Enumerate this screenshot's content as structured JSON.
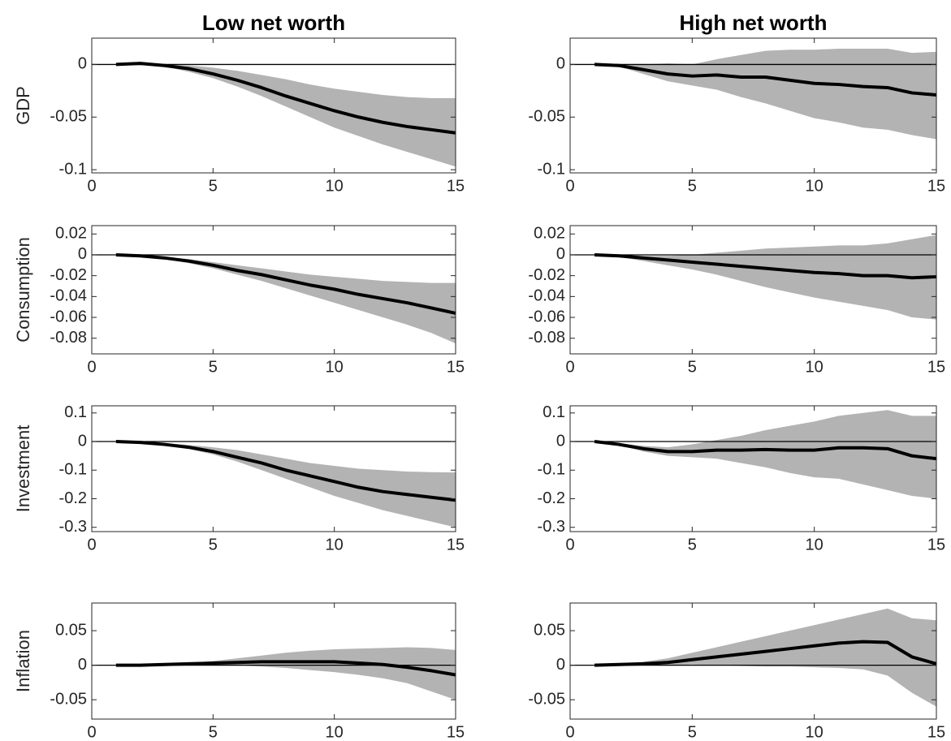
{
  "chart_data": [
    {
      "type": "line",
      "title": "Low net worth",
      "ylabel": "GDP",
      "x": [
        1,
        2,
        3,
        4,
        5,
        6,
        7,
        8,
        9,
        10,
        11,
        12,
        13,
        14,
        15
      ],
      "values": [
        0,
        0.001,
        -0.001,
        -0.004,
        -0.009,
        -0.015,
        -0.022,
        -0.03,
        -0.037,
        -0.044,
        -0.05,
        -0.055,
        -0.059,
        -0.062,
        -0.065
      ],
      "lower": [
        0,
        0.001,
        -0.002,
        -0.007,
        -0.013,
        -0.021,
        -0.03,
        -0.04,
        -0.05,
        -0.06,
        -0.068,
        -0.076,
        -0.083,
        -0.09,
        -0.097
      ],
      "upper": [
        0,
        0.001,
        0,
        -0.001,
        -0.003,
        -0.006,
        -0.01,
        -0.014,
        -0.019,
        -0.023,
        -0.026,
        -0.029,
        -0.031,
        -0.032,
        -0.032
      ],
      "color": "#000000",
      "band_color": "#b3b3b3",
      "reference_line": 0,
      "xlim": [
        0,
        15
      ],
      "xticks": [
        0,
        5,
        10,
        15
      ],
      "ylim": [
        -0.103,
        0.025
      ],
      "yticks": [
        -0.1,
        -0.05,
        0
      ]
    },
    {
      "type": "line",
      "title": "High net worth",
      "x": [
        1,
        2,
        3,
        4,
        5,
        6,
        7,
        8,
        9,
        10,
        11,
        12,
        13,
        14,
        15
      ],
      "values": [
        0,
        -0.001,
        -0.005,
        -0.009,
        -0.011,
        -0.01,
        -0.012,
        -0.012,
        -0.015,
        -0.018,
        -0.019,
        -0.021,
        -0.022,
        -0.027,
        -0.029
      ],
      "lower": [
        0,
        -0.002,
        -0.009,
        -0.016,
        -0.02,
        -0.024,
        -0.031,
        -0.037,
        -0.044,
        -0.051,
        -0.055,
        -0.06,
        -0.062,
        -0.067,
        -0.071
      ],
      "upper": [
        0,
        -0.001,
        0,
        0.001,
        0,
        0.005,
        0.009,
        0.013,
        0.014,
        0.014,
        0.015,
        0.015,
        0.015,
        0.011,
        0.012
      ],
      "color": "#000000",
      "band_color": "#b3b3b3",
      "reference_line": 0,
      "xlim": [
        0,
        15
      ],
      "xticks": [
        0,
        5,
        10,
        15
      ],
      "ylim": [
        -0.103,
        0.025
      ],
      "yticks": [
        -0.1,
        -0.05,
        0
      ]
    },
    {
      "type": "line",
      "ylabel": "Consumption",
      "x": [
        1,
        2,
        3,
        4,
        5,
        6,
        7,
        8,
        9,
        10,
        11,
        12,
        13,
        14,
        15
      ],
      "values": [
        0,
        -0.001,
        -0.003,
        -0.006,
        -0.01,
        -0.015,
        -0.019,
        -0.024,
        -0.029,
        -0.033,
        -0.038,
        -0.042,
        -0.046,
        -0.051,
        -0.056
      ],
      "lower": [
        0,
        -0.001,
        -0.004,
        -0.008,
        -0.013,
        -0.019,
        -0.025,
        -0.032,
        -0.039,
        -0.046,
        -0.053,
        -0.06,
        -0.067,
        -0.075,
        -0.085
      ],
      "upper": [
        0,
        -0.001,
        -0.002,
        -0.004,
        -0.007,
        -0.01,
        -0.013,
        -0.016,
        -0.019,
        -0.021,
        -0.023,
        -0.025,
        -0.026,
        -0.027,
        -0.027
      ],
      "color": "#000000",
      "band_color": "#b3b3b3",
      "reference_line": 0,
      "xlim": [
        0,
        15
      ],
      "xticks": [
        0,
        5,
        10,
        15
      ],
      "ylim": [
        -0.095,
        0.028
      ],
      "yticks": [
        -0.08,
        -0.06,
        -0.04,
        -0.02,
        0,
        0.02
      ]
    },
    {
      "type": "line",
      "x": [
        1,
        2,
        3,
        4,
        5,
        6,
        7,
        8,
        9,
        10,
        11,
        12,
        13,
        14,
        15
      ],
      "values": [
        0,
        -0.001,
        -0.003,
        -0.005,
        -0.007,
        -0.009,
        -0.011,
        -0.013,
        -0.015,
        -0.017,
        -0.018,
        -0.02,
        -0.02,
        -0.022,
        -0.021
      ],
      "lower": [
        0,
        -0.002,
        -0.006,
        -0.01,
        -0.014,
        -0.019,
        -0.025,
        -0.031,
        -0.036,
        -0.041,
        -0.045,
        -0.049,
        -0.053,
        -0.06,
        -0.062
      ],
      "upper": [
        0,
        0,
        -0.001,
        -0.001,
        0,
        0.002,
        0.004,
        0.006,
        0.007,
        0.008,
        0.009,
        0.009,
        0.011,
        0.015,
        0.019
      ],
      "color": "#000000",
      "band_color": "#b3b3b3",
      "reference_line": 0,
      "xlim": [
        0,
        15
      ],
      "xticks": [
        0,
        5,
        10,
        15
      ],
      "ylim": [
        -0.095,
        0.028
      ],
      "yticks": [
        -0.08,
        -0.06,
        -0.04,
        -0.02,
        0,
        0.02
      ]
    },
    {
      "type": "line",
      "ylabel": "Investment",
      "x": [
        1,
        2,
        3,
        4,
        5,
        6,
        7,
        8,
        9,
        10,
        11,
        12,
        13,
        14,
        15
      ],
      "values": [
        0,
        -0.003,
        -0.01,
        -0.02,
        -0.035,
        -0.055,
        -0.075,
        -0.1,
        -0.12,
        -0.14,
        -0.16,
        -0.175,
        -0.185,
        -0.195,
        -0.205
      ],
      "lower": [
        0,
        -0.004,
        -0.013,
        -0.026,
        -0.045,
        -0.07,
        -0.1,
        -0.13,
        -0.16,
        -0.19,
        -0.215,
        -0.24,
        -0.26,
        -0.28,
        -0.3
      ],
      "upper": [
        0,
        -0.002,
        -0.006,
        -0.012,
        -0.02,
        -0.03,
        -0.045,
        -0.06,
        -0.075,
        -0.085,
        -0.095,
        -0.1,
        -0.105,
        -0.107,
        -0.108
      ],
      "color": "#000000",
      "band_color": "#b3b3b3",
      "reference_line": 0,
      "xlim": [
        0,
        15
      ],
      "xticks": [
        0,
        5,
        10,
        15
      ],
      "ylim": [
        -0.315,
        0.125
      ],
      "yticks": [
        -0.3,
        -0.2,
        -0.1,
        0,
        0.1
      ]
    },
    {
      "type": "line",
      "x": [
        1,
        2,
        3,
        4,
        5,
        6,
        7,
        8,
        9,
        10,
        11,
        12,
        13,
        14,
        15
      ],
      "values": [
        0,
        -0.01,
        -0.025,
        -0.035,
        -0.035,
        -0.03,
        -0.03,
        -0.028,
        -0.03,
        -0.03,
        -0.022,
        -0.022,
        -0.025,
        -0.05,
        -0.06
      ],
      "lower": [
        0,
        -0.012,
        -0.035,
        -0.05,
        -0.055,
        -0.06,
        -0.075,
        -0.09,
        -0.11,
        -0.125,
        -0.13,
        -0.15,
        -0.17,
        -0.19,
        -0.2
      ],
      "upper": [
        0,
        -0.006,
        -0.015,
        -0.02,
        -0.01,
        0.005,
        0.02,
        0.04,
        0.055,
        0.07,
        0.09,
        0.1,
        0.11,
        0.09,
        0.09
      ],
      "color": "#000000",
      "band_color": "#b3b3b3",
      "reference_line": 0,
      "xlim": [
        0,
        15
      ],
      "xticks": [
        0,
        5,
        10,
        15
      ],
      "ylim": [
        -0.315,
        0.125
      ],
      "yticks": [
        -0.3,
        -0.2,
        -0.1,
        0,
        0.1
      ]
    },
    {
      "type": "line",
      "ylabel": "Inflation",
      "x": [
        1,
        2,
        3,
        4,
        5,
        6,
        7,
        8,
        9,
        10,
        11,
        12,
        13,
        14,
        15
      ],
      "values": [
        0,
        0,
        0.001,
        0.002,
        0.003,
        0.004,
        0.005,
        0.005,
        0.005,
        0.005,
        0.003,
        0.001,
        -0.003,
        -0.008,
        -0.014
      ],
      "lower": [
        0,
        0,
        0,
        0.001,
        0.001,
        0,
        -0.002,
        -0.004,
        -0.007,
        -0.01,
        -0.014,
        -0.019,
        -0.026,
        -0.038,
        -0.05
      ],
      "upper": [
        0,
        0.001,
        0.002,
        0.003,
        0.006,
        0.01,
        0.014,
        0.018,
        0.021,
        0.023,
        0.024,
        0.025,
        0.026,
        0.025,
        0.022
      ],
      "color": "#000000",
      "band_color": "#b3b3b3",
      "reference_line": 0,
      "xlim": [
        0,
        15
      ],
      "xticks": [
        0,
        5,
        10,
        15
      ],
      "ylim": [
        -0.078,
        0.09
      ],
      "yticks": [
        -0.05,
        0,
        0.05
      ]
    },
    {
      "type": "line",
      "x": [
        1,
        2,
        3,
        4,
        5,
        6,
        7,
        8,
        9,
        10,
        11,
        12,
        13,
        14,
        15
      ],
      "values": [
        0,
        0.001,
        0.002,
        0.004,
        0.008,
        0.012,
        0.016,
        0.02,
        0.024,
        0.028,
        0.032,
        0.034,
        0.033,
        0.012,
        0.002
      ],
      "lower": [
        0,
        0,
        0,
        0,
        0.001,
        0,
        -0.001,
        -0.002,
        -0.002,
        -0.003,
        -0.004,
        -0.006,
        -0.015,
        -0.04,
        -0.06
      ],
      "upper": [
        0,
        0.002,
        0.005,
        0.01,
        0.018,
        0.026,
        0.034,
        0.042,
        0.05,
        0.058,
        0.066,
        0.074,
        0.082,
        0.068,
        0.065
      ],
      "color": "#000000",
      "band_color": "#b3b3b3",
      "reference_line": 0,
      "xlim": [
        0,
        15
      ],
      "xticks": [
        0,
        5,
        10,
        15
      ],
      "ylim": [
        -0.078,
        0.09
      ],
      "yticks": [
        -0.05,
        0,
        0.05
      ]
    }
  ]
}
